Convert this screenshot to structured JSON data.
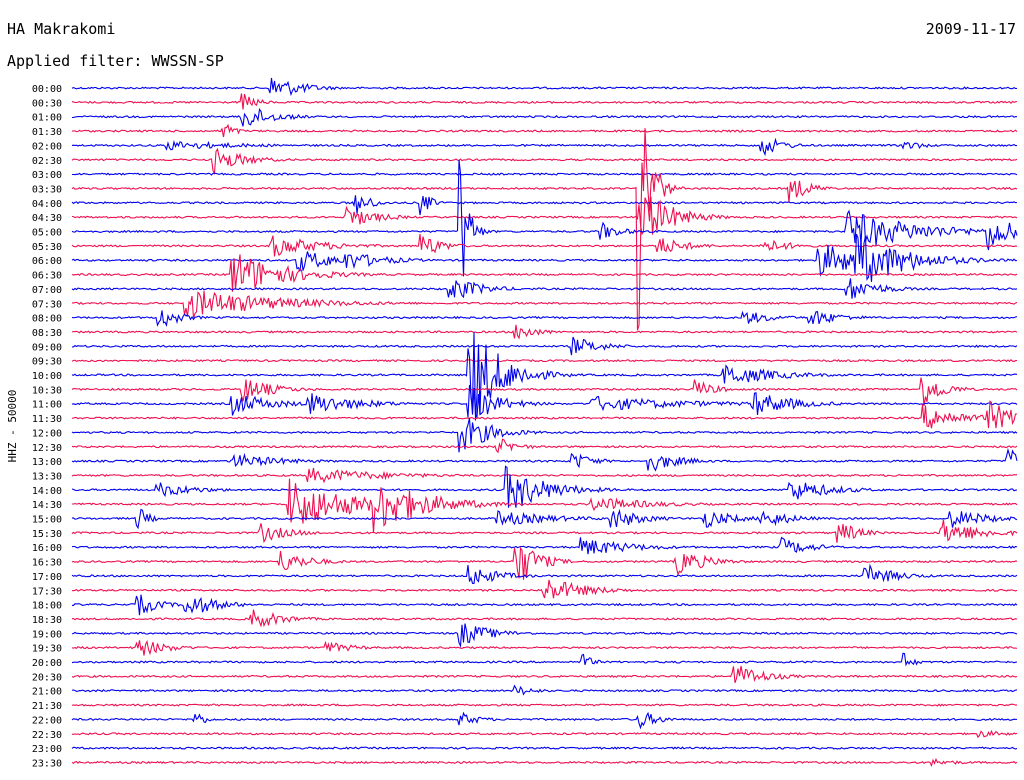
{
  "header": {
    "station": "HA Makrakomi",
    "date": "2009-11-17",
    "filter": "Applied filter: WWSSN-SP"
  },
  "chart_data": {
    "type": "line",
    "title": "HA Makrakomi",
    "subtitle": "Applied filter: WWSSN-SP",
    "date": "2009-11-17",
    "ylabel": "HHZ - 50000",
    "row_labels": [
      "00:00",
      "00:30",
      "01:00",
      "01:30",
      "02:00",
      "02:30",
      "03:00",
      "03:30",
      "04:00",
      "04:30",
      "05:00",
      "05:30",
      "06:00",
      "06:30",
      "07:00",
      "07:30",
      "08:00",
      "08:30",
      "09:00",
      "09:30",
      "10:00",
      "10:30",
      "11:00",
      "11:30",
      "12:00",
      "12:30",
      "13:00",
      "13:30",
      "14:00",
      "14:30",
      "15:00",
      "15:30",
      "16:00",
      "16:30",
      "17:00",
      "17:30",
      "18:00",
      "18:30",
      "19:00",
      "19:30",
      "20:00",
      "20:30",
      "21:00",
      "21:30",
      "22:00",
      "22:30",
      "23:00",
      "23:30"
    ],
    "row_colors": [
      "#0000ee",
      "#ee1050"
    ],
    "grid": false,
    "legend": "none",
    "events": [
      {
        "row": 0,
        "t": 0.21,
        "amp": 14,
        "dur": 0.03
      },
      {
        "row": 1,
        "t": 0.18,
        "amp": 10,
        "dur": 0.015
      },
      {
        "row": 2,
        "t": 0.18,
        "amp": 14,
        "dur": 0.03
      },
      {
        "row": 3,
        "t": 0.16,
        "amp": 12,
        "dur": 0.01
      },
      {
        "row": 4,
        "t": 0.1,
        "amp": 5,
        "dur": 0.08
      },
      {
        "row": 4,
        "t": 0.73,
        "amp": 12,
        "dur": 0.02
      },
      {
        "row": 4,
        "t": 0.88,
        "amp": 6,
        "dur": 0.02
      },
      {
        "row": 5,
        "t": 0.15,
        "amp": 14,
        "dur": 0.03
      },
      {
        "row": 7,
        "t": 0.6,
        "amp": 150,
        "dur": 0.01
      },
      {
        "row": 7,
        "t": 0.76,
        "amp": 14,
        "dur": 0.02
      },
      {
        "row": 8,
        "t": 0.3,
        "amp": 14,
        "dur": 0.015
      },
      {
        "row": 8,
        "t": 0.37,
        "amp": 14,
        "dur": 0.01
      },
      {
        "row": 9,
        "t": 0.29,
        "amp": 12,
        "dur": 0.03
      },
      {
        "row": 9,
        "t": 0.6,
        "amp": 34,
        "dur": 0.03
      },
      {
        "row": 10,
        "t": 0.41,
        "amp": 95,
        "dur": 0.008
      },
      {
        "row": 10,
        "t": 0.56,
        "amp": 10,
        "dur": 0.02
      },
      {
        "row": 10,
        "t": 0.82,
        "amp": 22,
        "dur": 0.07
      },
      {
        "row": 10,
        "t": 0.97,
        "amp": 20,
        "dur": 0.03
      },
      {
        "row": 11,
        "t": 0.21,
        "amp": 12,
        "dur": 0.05
      },
      {
        "row": 11,
        "t": 0.37,
        "amp": 14,
        "dur": 0.02
      },
      {
        "row": 11,
        "t": 0.62,
        "amp": 10,
        "dur": 0.03
      },
      {
        "row": 11,
        "t": 0.73,
        "amp": 8,
        "dur": 0.03
      },
      {
        "row": 12,
        "t": 0.24,
        "amp": 12,
        "dur": 0.04
      },
      {
        "row": 12,
        "t": 0.29,
        "amp": 10,
        "dur": 0.04
      },
      {
        "row": 12,
        "t": 0.79,
        "amp": 18,
        "dur": 0.06
      },
      {
        "row": 12,
        "t": 0.83,
        "amp": 30,
        "dur": 0.05
      },
      {
        "row": 13,
        "t": 0.17,
        "amp": 25,
        "dur": 0.05
      },
      {
        "row": 14,
        "t": 0.4,
        "amp": 14,
        "dur": 0.03
      },
      {
        "row": 14,
        "t": 0.82,
        "amp": 14,
        "dur": 0.03
      },
      {
        "row": 15,
        "t": 0.12,
        "amp": 16,
        "dur": 0.09
      },
      {
        "row": 16,
        "t": 0.09,
        "amp": 14,
        "dur": 0.02
      },
      {
        "row": 16,
        "t": 0.71,
        "amp": 8,
        "dur": 0.03
      },
      {
        "row": 16,
        "t": 0.78,
        "amp": 10,
        "dur": 0.03
      },
      {
        "row": 17,
        "t": 0.47,
        "amp": 10,
        "dur": 0.02
      },
      {
        "row": 18,
        "t": 0.53,
        "amp": 10,
        "dur": 0.03
      },
      {
        "row": 20,
        "t": 0.42,
        "amp": 60,
        "dur": 0.03
      },
      {
        "row": 20,
        "t": 0.48,
        "amp": 10,
        "dur": 0.02
      },
      {
        "row": 20,
        "t": 0.69,
        "amp": 12,
        "dur": 0.05
      },
      {
        "row": 21,
        "t": 0.18,
        "amp": 14,
        "dur": 0.03
      },
      {
        "row": 21,
        "t": 0.66,
        "amp": 10,
        "dur": 0.02
      },
      {
        "row": 21,
        "t": 0.9,
        "amp": 20,
        "dur": 0.02
      },
      {
        "row": 22,
        "t": 0.17,
        "amp": 12,
        "dur": 0.04
      },
      {
        "row": 22,
        "t": 0.25,
        "amp": 12,
        "dur": 0.05
      },
      {
        "row": 22,
        "t": 0.42,
        "amp": 20,
        "dur": 0.03
      },
      {
        "row": 22,
        "t": 0.55,
        "amp": 8,
        "dur": 0.1
      },
      {
        "row": 22,
        "t": 0.72,
        "amp": 14,
        "dur": 0.04
      },
      {
        "row": 23,
        "t": 0.9,
        "amp": 14,
        "dur": 0.04
      },
      {
        "row": 23,
        "t": 0.97,
        "amp": 18,
        "dur": 0.03
      },
      {
        "row": 24,
        "t": 0.41,
        "amp": 22,
        "dur": 0.03
      },
      {
        "row": 25,
        "t": 0.45,
        "amp": 10,
        "dur": 0.02
      },
      {
        "row": 26,
        "t": 0.17,
        "amp": 8,
        "dur": 0.05
      },
      {
        "row": 26,
        "t": 0.53,
        "amp": 10,
        "dur": 0.02
      },
      {
        "row": 26,
        "t": 0.61,
        "amp": 12,
        "dur": 0.03
      },
      {
        "row": 26,
        "t": 0.99,
        "amp": 14,
        "dur": 0.02
      },
      {
        "row": 27,
        "t": 0.25,
        "amp": 8,
        "dur": 0.08
      },
      {
        "row": 28,
        "t": 0.09,
        "amp": 8,
        "dur": 0.04
      },
      {
        "row": 28,
        "t": 0.46,
        "amp": 25,
        "dur": 0.04
      },
      {
        "row": 28,
        "t": 0.76,
        "amp": 12,
        "dur": 0.04
      },
      {
        "row": 29,
        "t": 0.23,
        "amp": 28,
        "dur": 0.06
      },
      {
        "row": 29,
        "t": 0.32,
        "amp": 30,
        "dur": 0.05
      },
      {
        "row": 29,
        "t": 0.55,
        "amp": 8,
        "dur": 0.06
      },
      {
        "row": 30,
        "t": 0.07,
        "amp": 14,
        "dur": 0.01
      },
      {
        "row": 30,
        "t": 0.45,
        "amp": 8,
        "dur": 0.06
      },
      {
        "row": 30,
        "t": 0.57,
        "amp": 12,
        "dur": 0.03
      },
      {
        "row": 30,
        "t": 0.67,
        "amp": 10,
        "dur": 0.03
      },
      {
        "row": 30,
        "t": 0.73,
        "amp": 10,
        "dur": 0.03
      },
      {
        "row": 30,
        "t": 0.93,
        "amp": 10,
        "dur": 0.04
      },
      {
        "row": 31,
        "t": 0.2,
        "amp": 10,
        "dur": 0.03
      },
      {
        "row": 31,
        "t": 0.81,
        "amp": 14,
        "dur": 0.02
      },
      {
        "row": 31,
        "t": 0.92,
        "amp": 14,
        "dur": 0.04
      },
      {
        "row": 32,
        "t": 0.54,
        "amp": 10,
        "dur": 0.05
      },
      {
        "row": 32,
        "t": 0.75,
        "amp": 10,
        "dur": 0.03
      },
      {
        "row": 33,
        "t": 0.22,
        "amp": 12,
        "dur": 0.03
      },
      {
        "row": 33,
        "t": 0.47,
        "amp": 30,
        "dur": 0.02
      },
      {
        "row": 33,
        "t": 0.64,
        "amp": 14,
        "dur": 0.03
      },
      {
        "row": 34,
        "t": 0.42,
        "amp": 12,
        "dur": 0.03
      },
      {
        "row": 34,
        "t": 0.84,
        "amp": 12,
        "dur": 0.03
      },
      {
        "row": 35,
        "t": 0.5,
        "amp": 14,
        "dur": 0.04
      },
      {
        "row": 36,
        "t": 0.07,
        "amp": 12,
        "dur": 0.02
      },
      {
        "row": 36,
        "t": 0.12,
        "amp": 14,
        "dur": 0.03
      },
      {
        "row": 37,
        "t": 0.19,
        "amp": 12,
        "dur": 0.03
      },
      {
        "row": 38,
        "t": 0.41,
        "amp": 14,
        "dur": 0.03
      },
      {
        "row": 39,
        "t": 0.07,
        "amp": 10,
        "dur": 0.03
      },
      {
        "row": 39,
        "t": 0.27,
        "amp": 6,
        "dur": 0.03
      },
      {
        "row": 40,
        "t": 0.54,
        "amp": 10,
        "dur": 0.01
      },
      {
        "row": 40,
        "t": 0.88,
        "amp": 10,
        "dur": 0.01
      },
      {
        "row": 41,
        "t": 0.7,
        "amp": 14,
        "dur": 0.03
      },
      {
        "row": 42,
        "t": 0.47,
        "amp": 6,
        "dur": 0.02
      },
      {
        "row": 44,
        "t": 0.13,
        "amp": 10,
        "dur": 0.01
      },
      {
        "row": 44,
        "t": 0.41,
        "amp": 8,
        "dur": 0.02
      },
      {
        "row": 44,
        "t": 0.6,
        "amp": 10,
        "dur": 0.02
      },
      {
        "row": 45,
        "t": 0.96,
        "amp": 4,
        "dur": 0.03
      },
      {
        "row": 47,
        "t": 0.91,
        "amp": 4,
        "dur": 0.03
      }
    ]
  }
}
